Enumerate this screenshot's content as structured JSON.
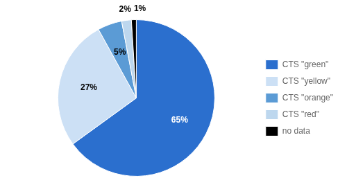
{
  "chart_data": {
    "type": "pie",
    "categories": [
      "CTS \"green\"",
      "CTS \"yellow\"",
      "CTS \"orange\"",
      "CTS \"red\"",
      "no data"
    ],
    "values": [
      65,
      27,
      5,
      2,
      1
    ],
    "value_labels": [
      "65%",
      "27%",
      "5%",
      "2%",
      "1%"
    ],
    "colors": [
      "#2b6fce",
      "#cce0f5",
      "#5b9bd5",
      "#bdd7ee",
      "#000000"
    ],
    "data_labels": true,
    "legend": "right"
  }
}
